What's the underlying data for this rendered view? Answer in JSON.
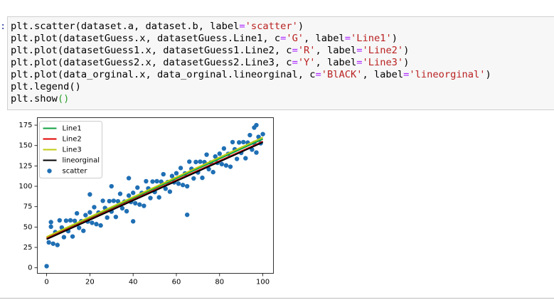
{
  "prompt": ":",
  "code": {
    "lines": [
      [
        "plt.scatter(dataset.a, dataset.b, label",
        "=",
        "'scatter'",
        ")"
      ],
      [
        "plt.plot(datasetGuess.x, datasetGuess.Line1, c",
        "=",
        "'G'",
        ", label",
        "=",
        "'Line1'",
        ")"
      ],
      [
        "plt.plot(datasetGuess1.x, datasetGuess1.Line2, c",
        "=",
        "'R'",
        ", label",
        "=",
        "'Line2'",
        ")"
      ],
      [
        "plt.plot(datasetGuess2.x, datasetGuess2.Line3, c",
        "=",
        "'Y'",
        ", label",
        "=",
        "'Line3'",
        ")"
      ],
      [
        "plt.plot(data_orginal.x, data_orginal.lineorginal, c",
        "=",
        "'BlACK'",
        ", label",
        "=",
        "'lineorginal'",
        ")"
      ],
      [
        "plt.legend()"
      ],
      [
        "plt.show",
        "()"
      ]
    ]
  },
  "chart_data": {
    "type": "scatter",
    "xlim": [
      -4.3,
      104.9
    ],
    "ylim": [
      -6.8,
      184.2
    ],
    "xticks": [
      0,
      20,
      40,
      60,
      80,
      100
    ],
    "yticks": [
      0,
      25,
      50,
      75,
      100,
      125,
      150,
      175
    ],
    "legend": "upper left",
    "series": [
      {
        "name": "Line1",
        "kind": "line",
        "color": "#10a040",
        "x": [
          0,
          100
        ],
        "values": [
          37,
          158
        ]
      },
      {
        "name": "Line2",
        "kind": "line",
        "color": "#e00000",
        "x": [
          0,
          100
        ],
        "values": [
          36,
          155
        ]
      },
      {
        "name": "Line3",
        "kind": "line",
        "color": "#c0cc10",
        "x": [
          0,
          100
        ],
        "values": [
          38,
          160
        ]
      },
      {
        "name": "lineorginal",
        "kind": "line",
        "color": "#000000",
        "x": [
          0,
          100
        ],
        "values": [
          35,
          154
        ]
      },
      {
        "name": "scatter",
        "kind": "scatter",
        "color": "#1f6fb4",
        "x": [
          0,
          1,
          2,
          3,
          4,
          5,
          6,
          7,
          8,
          9,
          10,
          11,
          12,
          13,
          14,
          15,
          16,
          17,
          18,
          19,
          20,
          21,
          22,
          23,
          24,
          25,
          26,
          27,
          28,
          29,
          30,
          31,
          32,
          33,
          34,
          35,
          36,
          37,
          38,
          39,
          40,
          41,
          42,
          43,
          44,
          45,
          46,
          47,
          48,
          49,
          50,
          51,
          52,
          53,
          54,
          55,
          56,
          57,
          58,
          59,
          60,
          61,
          62,
          63,
          64,
          65,
          66,
          67,
          68,
          69,
          70,
          71,
          72,
          73,
          74,
          75,
          76,
          77,
          78,
          79,
          80,
          81,
          82,
          83,
          84,
          85,
          86,
          87,
          88,
          89,
          90,
          91,
          92,
          93,
          94,
          95,
          96,
          97,
          98,
          99,
          100,
          97,
          96,
          38,
          20,
          65,
          40,
          2,
          30
        ],
        "values": [
          2,
          31.2,
          50.4,
          29.6,
          43.8,
          28,
          58.2,
          49.4,
          37.6,
          57.8,
          45,
          58.2,
          38.4,
          57.6,
          66.8,
          49,
          57.2,
          45.4,
          64.6,
          56.8,
          68,
          55.2,
          74.4,
          53.6,
          67.8,
          52,
          82.2,
          73.4,
          61.6,
          81.8,
          69,
          82.2,
          62.4,
          81.6,
          90.8,
          73,
          81.2,
          69.4,
          88.6,
          80.8,
          92,
          79.2,
          98.4,
          77.6,
          91.8,
          76,
          106.2,
          97.4,
          85.6,
          105.8,
          93,
          106.2,
          86.4,
          105.6,
          114.8,
          97,
          105.2,
          93.4,
          112.6,
          104.8,
          116,
          103.2,
          122.4,
          101.6,
          115.8,
          100,
          130.2,
          121.4,
          109.6,
          129.8,
          117,
          130.2,
          110.4,
          129.6,
          138.8,
          121,
          129.2,
          117.4,
          136.6,
          128.8,
          140,
          127.2,
          146.4,
          125.6,
          139.8,
          124,
          154.2,
          145.4,
          133.6,
          153.8,
          141,
          154.2,
          134.4,
          153.6,
          162.8,
          145,
          153.2,
          141.4,
          160.6,
          152.8,
          164,
          175,
          172,
          110,
          90,
          65,
          57,
          56,
          100
        ]
      }
    ]
  }
}
